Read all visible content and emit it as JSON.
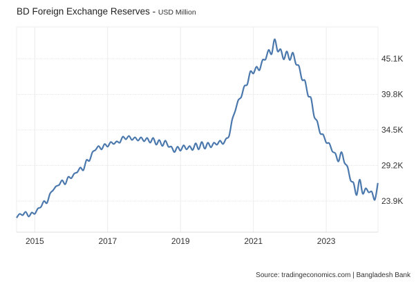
{
  "chart_data": {
    "type": "line",
    "title": "BD Foreign Exchange Reserves",
    "subtitle": "USD Million",
    "xlabel": "",
    "ylabel": "",
    "x_start": 2014.5,
    "x_step_months": 1,
    "xlim": [
      2014.5,
      2024.42
    ],
    "ylim": [
      19270,
      49830
    ],
    "x_ticks": [
      {
        "value": 2015,
        "label": "2015"
      },
      {
        "value": 2017,
        "label": "2017"
      },
      {
        "value": 2019,
        "label": "2019"
      },
      {
        "value": 2021,
        "label": "2021"
      },
      {
        "value": 2023,
        "label": "2023"
      }
    ],
    "y_ticks": [
      {
        "value": 23900,
        "label": "23.9K"
      },
      {
        "value": 29200,
        "label": "29.2K"
      },
      {
        "value": 34500,
        "label": "34.5K"
      },
      {
        "value": 39800,
        "label": "39.8K"
      },
      {
        "value": 45100,
        "label": "45.1K"
      }
    ],
    "grid": true,
    "series": [
      {
        "name": "BD Foreign Exchange Reserves",
        "color": "#4a78ad",
        "values": [
          21400,
          22000,
          21800,
          22300,
          21600,
          22200,
          22000,
          22800,
          23000,
          23900,
          23600,
          25000,
          25500,
          26100,
          26300,
          27000,
          26400,
          27500,
          27300,
          28000,
          28200,
          28900,
          28500,
          30000,
          29900,
          31200,
          31500,
          32100,
          31600,
          32400,
          32000,
          32700,
          32400,
          32800,
          32600,
          33500,
          33100,
          33600,
          33000,
          33400,
          32900,
          33400,
          32800,
          33300,
          32600,
          33300,
          32300,
          33000,
          32100,
          32900,
          32000,
          32000,
          31200,
          32000,
          31400,
          32200,
          31600,
          32100,
          31500,
          32500,
          31600,
          32700,
          31700,
          32600,
          31900,
          32600,
          32300,
          32900,
          32400,
          33200,
          33600,
          36000,
          37300,
          38900,
          39400,
          41000,
          41300,
          43200,
          42900,
          43900,
          43400,
          44900,
          45000,
          46400,
          45800,
          48000,
          46200,
          46500,
          45000,
          46200,
          44900,
          46000,
          44300,
          44000,
          42000,
          41800,
          39600,
          39200,
          36500,
          35800,
          34000,
          33800,
          32600,
          32500,
          31300,
          31000,
          29800,
          31200,
          29600,
          29000,
          27000,
          26600,
          24800,
          27100,
          25000,
          25800,
          25200,
          25300,
          24100,
          26600
        ]
      }
    ]
  },
  "footer": {
    "source": "Source: tradingeconomics.com | Bangladesh Bank"
  }
}
